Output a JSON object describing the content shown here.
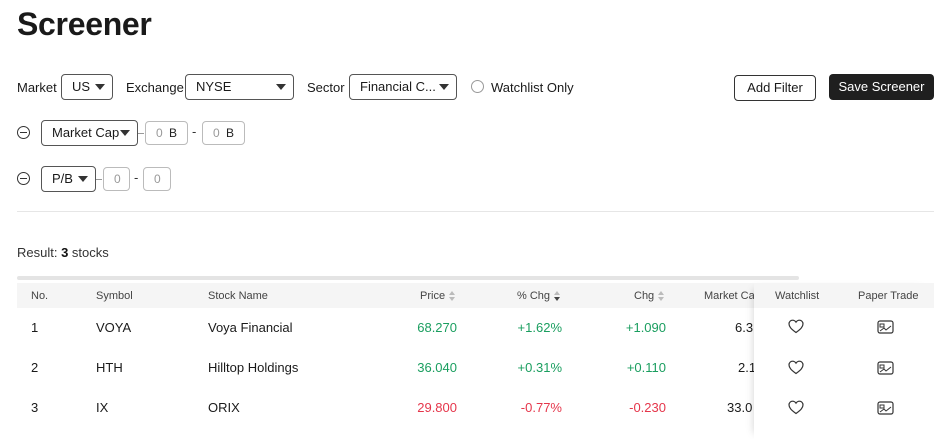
{
  "page": {
    "title": "Screener"
  },
  "filters": {
    "market_label": "Market",
    "market_value": "US",
    "exchange_label": "Exchange",
    "exchange_value": "NYSE",
    "sector_label": "Sector",
    "sector_value": "Financial C...",
    "watchlist_only_label": "Watchlist Only",
    "add_filter_label": "Add Filter",
    "save_screener_label": "Save Screener",
    "market_cap": {
      "label": "Market Cap",
      "min": "0",
      "max": "0",
      "unit": "B"
    },
    "pb": {
      "label": "P/B",
      "min": "0",
      "max": "0"
    }
  },
  "result": {
    "prefix": "Result: ",
    "count": "3",
    "suffix": " stocks"
  },
  "table": {
    "columns": {
      "no": "No.",
      "symbol": "Symbol",
      "name": "Stock Name",
      "price": "Price",
      "pct_chg": "% Chg",
      "chg": "Chg",
      "market_cap": "Market Cap",
      "watchlist": "Watchlist",
      "paper_trade": "Paper Trade"
    },
    "rows": [
      {
        "no": "1",
        "symbol": "VOYA",
        "name": "Voya Financial",
        "price": "68.270",
        "pct_chg": "+1.62%",
        "chg": "+1.090",
        "market_cap": "6.3",
        "direction": "up"
      },
      {
        "no": "2",
        "symbol": "HTH",
        "name": "Hilltop Holdings",
        "price": "36.040",
        "pct_chg": "+0.31%",
        "chg": "+0.110",
        "market_cap": "2.1",
        "direction": "up"
      },
      {
        "no": "3",
        "symbol": "IX",
        "name": "ORIX",
        "price": "29.800",
        "pct_chg": "-0.77%",
        "chg": "-0.230",
        "market_cap": "33.0",
        "direction": "down"
      }
    ]
  },
  "colors": {
    "up": "#1a9e5f",
    "down": "#e5364b",
    "primary_button": "#1f1f1f"
  },
  "icons": {
    "remove_filter": "minus-circle-icon",
    "watchlist": "heart-icon",
    "paper_trade": "paper-trade-icon",
    "dropdown": "caret-down-icon",
    "sort": "sort-icon"
  }
}
